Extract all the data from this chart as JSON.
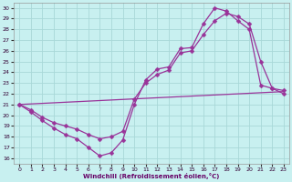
{
  "xlabel": "Windchill (Refroidissement éolien,°C)",
  "bg_color": "#c8f0f0",
  "grid_color": "#a8d8d8",
  "line_color": "#993399",
  "x_ticks": [
    0,
    1,
    2,
    3,
    4,
    5,
    6,
    7,
    8,
    9,
    10,
    11,
    12,
    13,
    14,
    15,
    16,
    17,
    18,
    19,
    20,
    21,
    22,
    23
  ],
  "y_ticks": [
    16,
    17,
    18,
    19,
    20,
    21,
    22,
    23,
    24,
    25,
    26,
    27,
    28,
    29,
    30
  ],
  "xlim": [
    -0.5,
    23.5
  ],
  "ylim": [
    15.5,
    30.5
  ],
  "series": [
    {
      "x": [
        0,
        1,
        2,
        3,
        4,
        5,
        6,
        7,
        8,
        9,
        10,
        11,
        12,
        13,
        14,
        15,
        16,
        17,
        18,
        19,
        20,
        21,
        22,
        23
      ],
      "y": [
        21,
        20.3,
        19.5,
        18.8,
        18.2,
        17.8,
        17.0,
        16.2,
        16.5,
        17.7,
        21.0,
        23.3,
        24.3,
        24.5,
        26.2,
        26.3,
        28.5,
        30.0,
        29.7,
        28.8,
        28.0,
        22.8,
        22.5,
        22.3
      ],
      "marker": "D",
      "markersize": 2.5
    },
    {
      "x": [
        0,
        1,
        2,
        3,
        4,
        5,
        6,
        7,
        8,
        9,
        10,
        11,
        12,
        13,
        14,
        15,
        16,
        17,
        18,
        19,
        20,
        21,
        22,
        23
      ],
      "y": [
        21,
        20.5,
        19.8,
        19.3,
        19.0,
        18.7,
        18.2,
        17.8,
        18.0,
        18.5,
        21.5,
        23.0,
        23.8,
        24.2,
        25.8,
        26.0,
        27.5,
        28.8,
        29.5,
        29.2,
        28.5,
        25.0,
        22.5,
        22.0
      ],
      "marker": "D",
      "markersize": 2.5
    },
    {
      "x": [
        0,
        23
      ],
      "y": [
        21,
        22.2
      ],
      "marker": null,
      "markersize": 0
    }
  ]
}
